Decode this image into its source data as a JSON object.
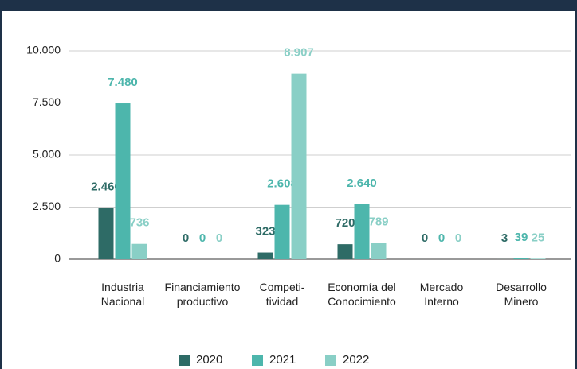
{
  "chart_data": {
    "type": "bar",
    "categories": [
      "Industria\nNacional",
      "Financiamiento\nproductivo",
      "Competi-\ntividad",
      "Economía del\nConocimiento",
      "Mercado\nInterno",
      "Desarrollo\nMinero"
    ],
    "series": [
      {
        "name": "2020",
        "color": "#2e6b66",
        "values": [
          2466,
          0,
          323,
          720,
          0,
          3
        ],
        "value_labels": [
          "2.466",
          "0",
          "323",
          "720",
          "0",
          "3"
        ]
      },
      {
        "name": "2021",
        "color": "#4db6ac",
        "values": [
          7480,
          0,
          2608,
          2640,
          0,
          39
        ],
        "value_labels": [
          "7.480",
          "0",
          "2.608",
          "2.640",
          "0",
          "39"
        ]
      },
      {
        "name": "2022",
        "color": "#89cfc6",
        "values": [
          736,
          0,
          8907,
          789,
          0,
          25
        ],
        "value_labels": [
          "736",
          "0",
          "8.907",
          "789",
          "0",
          "25"
        ]
      }
    ],
    "ylim": [
      0,
      10000
    ],
    "yticks": [
      0,
      {
        "value": 2500,
        "label": "2.500"
      },
      {
        "value": 5000,
        "label": "5.000"
      },
      {
        "value": 7500,
        "label": "7.500"
      },
      {
        "value": 10000,
        "label": "10.000"
      }
    ],
    "grid": true,
    "legend": "bottom"
  }
}
